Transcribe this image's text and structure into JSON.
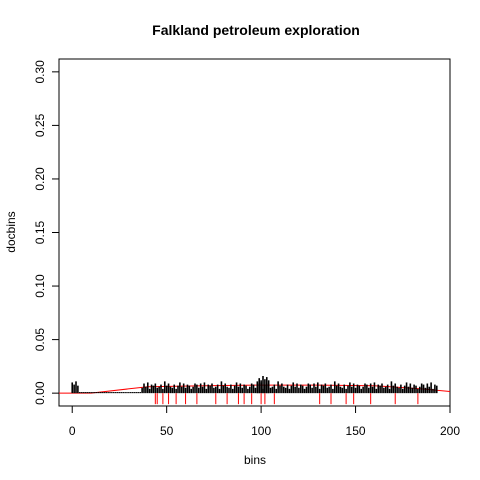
{
  "chart_data": {
    "type": "bar",
    "title": "Falkland petroleum exploration",
    "xlabel": "bins",
    "ylabel": "docbins",
    "xlim": [
      -7,
      200
    ],
    "ylim": [
      -0.012,
      0.312
    ],
    "xticks": [
      0,
      50,
      100,
      150,
      200
    ],
    "yticks": [
      0.0,
      0.05,
      0.1,
      0.15,
      0.2,
      0.25,
      0.3
    ],
    "ytick_labels": [
      "0.00",
      "0.05",
      "0.10",
      "0.15",
      "0.20",
      "0.25",
      "0.30"
    ],
    "grid": false,
    "legend": "none",
    "colors": {
      "bars": "#000000",
      "markers": "#ff0000",
      "smooth": "#ff0000"
    },
    "bar_segments": [
      {
        "from": 0,
        "to": 3,
        "values": [
          0.01,
          0.008,
          0.011,
          0.007
        ]
      },
      {
        "from": 4,
        "to": 36,
        "values": [
          0.001
        ]
      },
      {
        "from": 37,
        "to": 193,
        "values": [
          0.005,
          0.009,
          0.006,
          0.01,
          0.004,
          0.008,
          0.007,
          0.009,
          0.005,
          0.006,
          0.008,
          0.004,
          0.011,
          0.007,
          0.009,
          0.006,
          0.005,
          0.008,
          0.004,
          0.007,
          0.01,
          0.006,
          0.009,
          0.005,
          0.008,
          0.007,
          0.004,
          0.006,
          0.009,
          0.008
        ]
      },
      {
        "from": 98,
        "to": 104,
        "values": [
          0.011,
          0.014,
          0.012,
          0.016,
          0.013,
          0.015,
          0.012
        ]
      }
    ],
    "marker_x": [
      44,
      45,
      48,
      51,
      55,
      60,
      66,
      76,
      82,
      88,
      91,
      95,
      100,
      102,
      107,
      131,
      137,
      145,
      149,
      158,
      171,
      183
    ],
    "smooth_curve": [
      [
        -7,
        0.0
      ],
      [
        10,
        0.0
      ],
      [
        40,
        0.006
      ],
      [
        70,
        0.007
      ],
      [
        100,
        0.0075
      ],
      [
        130,
        0.0075
      ],
      [
        160,
        0.007
      ],
      [
        185,
        0.004
      ],
      [
        200,
        0.0015
      ]
    ]
  }
}
